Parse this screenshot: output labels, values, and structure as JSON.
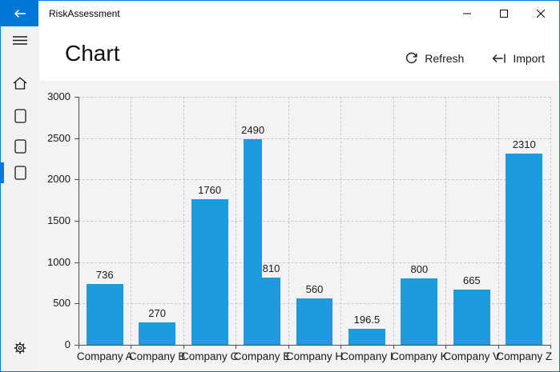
{
  "titlebar": {
    "app_title": "RiskAssessment"
  },
  "header": {
    "page_title": "Chart",
    "commands": [
      {
        "label": "Refresh",
        "icon": "refresh-icon"
      },
      {
        "label": "Import",
        "icon": "import-icon"
      }
    ]
  },
  "sidebar": {
    "selected_index": 3,
    "items": [
      "home",
      "page-1",
      "page-2",
      "page-3",
      "settings"
    ]
  },
  "colors": {
    "accent": "#0078d7",
    "bar": "#1e9ade"
  },
  "chart_data": {
    "type": "bar",
    "categories": [
      "Company A",
      "Company B",
      "Company C",
      "Company E",
      "Company E",
      "Company H",
      "Company I",
      "Company K",
      "Company V",
      "Company Z"
    ],
    "values": [
      736,
      270,
      1760,
      2490,
      810,
      560,
      196.5,
      800,
      665,
      2310
    ],
    "value_labels": [
      "736",
      "270",
      "1760",
      "2490",
      "810",
      "560",
      "196.5",
      "800",
      "665",
      "2310"
    ],
    "title": "",
    "xlabel": "",
    "ylabel": "",
    "ylim": [
      0,
      3000
    ],
    "ytick_step": 500,
    "grid": "dashed",
    "legend": "none",
    "bar_color": "#1e9ade"
  }
}
